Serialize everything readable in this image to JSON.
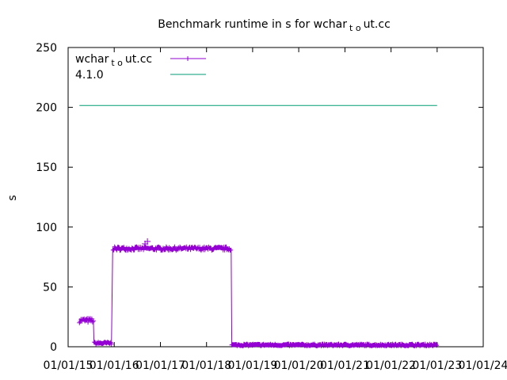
{
  "chart_data": {
    "type": "line",
    "title": {
      "main": "Benchmark runtime in s for wchar",
      "sub": "t o",
      "tail": "ut.cc"
    },
    "ylabel": "s",
    "xlabel": "",
    "ylim": [
      0,
      250
    ],
    "xlim": [
      "2015-01-01",
      "2024-01-01"
    ],
    "yticks": [
      0,
      50,
      100,
      150,
      200,
      250
    ],
    "xticks": [
      "01/01/15",
      "01/01/16",
      "01/01/17",
      "01/01/18",
      "01/01/19",
      "01/01/20",
      "01/01/21",
      "01/01/22",
      "01/01/23",
      "01/01/24"
    ],
    "grid": false,
    "legend_position": "top-left",
    "series": [
      {
        "name": {
          "main": "wchar",
          "sub": "t o",
          "tail": "ut.cc"
        },
        "color": "#9400d3",
        "marker": "plus",
        "segments": [
          {
            "from": "2015-04-01",
            "to": "2015-07-20",
            "value": 22,
            "jitter": 2
          },
          {
            "from": "2015-07-25",
            "to": "2015-12-10",
            "value": 3,
            "jitter": 1
          },
          {
            "from": "2015-12-20",
            "to": "2018-07-15",
            "value": 82,
            "jitter": 1.5
          },
          {
            "from": "2018-07-20",
            "to": "2022-12-31",
            "value": 1.5,
            "jitter": 0.8
          }
        ],
        "outliers": [
          {
            "x": "2016-09-20",
            "y": 88
          },
          {
            "x": "2016-09-01",
            "y": 86
          }
        ]
      },
      {
        "name": {
          "main": "4.1.0",
          "sub": "",
          "tail": ""
        },
        "color": "#009e73",
        "marker": "none",
        "segments": [
          {
            "from": "2015-04-01",
            "to": "2023-01-01",
            "value": 201.5,
            "jitter": 0
          }
        ]
      }
    ]
  }
}
